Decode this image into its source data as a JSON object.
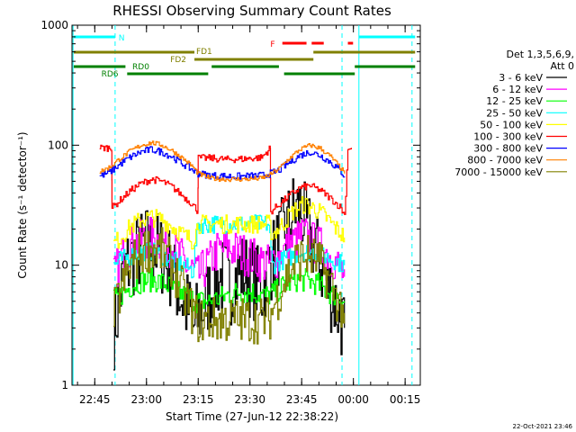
{
  "chart_data": {
    "type": "line",
    "title": "RHESSI Observing Summary Count Rates",
    "ylabel": "Count Rate (s⁻¹ detector⁻¹)",
    "xlabel": "Start Time (27-Jun-12 22:38:22)",
    "yscale": "log",
    "ylim": [
      1,
      1000
    ],
    "xlim_minutes": [
      0,
      101
    ],
    "x_unit": "minutes after 27-Jun-12 22:38:22",
    "y_ticks": [
      "1",
      "10",
      "100",
      "1000"
    ],
    "x_ticks": [
      {
        "label": "22:45",
        "minute": 6.6
      },
      {
        "label": "23:00",
        "minute": 21.6
      },
      {
        "label": "23:15",
        "minute": 36.6
      },
      {
        "label": "23:30",
        "minute": 51.6
      },
      {
        "label": "23:45",
        "minute": 66.6
      },
      {
        "label": "00:00",
        "minute": 81.6
      },
      {
        "label": "00:15",
        "minute": 96.6
      }
    ],
    "legend_header": [
      "Det 1,3,5,6,9,",
      "Att 0"
    ],
    "legend_placement": "right",
    "series": [
      {
        "name": "3 - 6 keV",
        "color": "#000000",
        "x": [
          12,
          13,
          15,
          18,
          22,
          25,
          28,
          30,
          32,
          34,
          35,
          37,
          40,
          43,
          46,
          49,
          52,
          55,
          57,
          60,
          62,
          64,
          66,
          67,
          68,
          70,
          72,
          74,
          76,
          79
        ],
        "y": [
          3,
          4,
          9,
          12,
          15,
          13,
          10,
          7,
          5,
          4,
          3,
          4,
          6,
          8,
          7,
          9,
          8,
          6,
          10,
          15,
          20,
          28,
          30,
          24,
          20,
          15,
          10,
          7,
          5,
          3
        ]
      },
      {
        "name": "6 - 12 keV",
        "color": "#ff00ff",
        "x": [
          12,
          14,
          17,
          20,
          23,
          26,
          29,
          31,
          33,
          35,
          36.5,
          39,
          42,
          45,
          48,
          51,
          54,
          57,
          60,
          63,
          65,
          67,
          69,
          72,
          75,
          78,
          79
        ],
        "y": [
          8,
          11,
          15,
          16,
          17,
          16,
          14,
          12,
          10,
          9,
          8,
          10,
          13,
          14,
          13,
          12,
          11,
          10,
          12,
          15,
          16,
          18,
          16,
          14,
          12,
          9,
          8
        ]
      },
      {
        "name": "12 - 25 keV",
        "color": "#00ff00",
        "x": [
          12,
          15,
          18,
          21,
          24,
          27,
          30,
          33,
          36,
          36.5,
          40,
          44,
          48,
          52,
          56,
          59,
          62,
          65,
          68,
          71,
          74,
          77,
          79
        ],
        "y": [
          5,
          6,
          7,
          7.5,
          7.5,
          7,
          6,
          5.5,
          5,
          5,
          5,
          5.5,
          6,
          6,
          5.5,
          6,
          7,
          7.5,
          7.5,
          7,
          6,
          5.5,
          5
        ]
      },
      {
        "name": "25 - 50 keV",
        "color": "#00ffff",
        "x": [
          12,
          14,
          17,
          20,
          23,
          26,
          29,
          32,
          35,
          36.5,
          40,
          45,
          50,
          55,
          57,
          58,
          61,
          64,
          67,
          70,
          73,
          76,
          79
        ],
        "y": [
          10,
          11,
          12,
          13,
          13,
          12,
          11,
          10,
          9,
          22,
          22,
          22,
          22,
          22,
          22,
          10,
          11,
          12,
          13,
          13,
          12,
          11,
          10
        ]
      },
      {
        "name": "50 - 100 keV",
        "color": "#ffff00",
        "x": [
          12,
          14,
          17,
          20,
          23,
          26,
          29,
          32,
          35,
          36.5,
          40,
          45,
          50,
          55,
          57,
          58,
          61,
          64,
          67,
          70,
          73,
          76,
          79
        ],
        "y": [
          15,
          17,
          21,
          24,
          25,
          24,
          21,
          18,
          16,
          22,
          22,
          22,
          22,
          22,
          22,
          18,
          22,
          28,
          32,
          30,
          26,
          21,
          17
        ]
      },
      {
        "name": "100 - 300 keV",
        "color": "#ff0000",
        "x": [
          8,
          11.5,
          11.6,
          14,
          17,
          20,
          23,
          26,
          29,
          32,
          35,
          36.5,
          36.6,
          40,
          45,
          50,
          55,
          57.5,
          57.6,
          60,
          63,
          66,
          69,
          72,
          75,
          78,
          79,
          80,
          81
        ],
        "y": [
          95,
          95,
          30,
          35,
          42,
          48,
          52,
          50,
          45,
          38,
          32,
          28,
          78,
          78,
          76,
          77,
          79,
          95,
          28,
          32,
          38,
          44,
          46,
          42,
          36,
          30,
          26,
          95,
          95
        ]
      },
      {
        "name": "300 - 800 keV",
        "color": "#0000ff",
        "x": [
          8,
          11,
          14,
          17,
          20,
          23,
          26,
          29,
          32,
          35,
          36.5,
          40,
          45,
          50,
          55,
          57.5,
          60,
          63,
          66,
          69,
          72,
          75,
          78,
          79
        ],
        "y": [
          55,
          60,
          70,
          80,
          88,
          92,
          88,
          80,
          70,
          62,
          58,
          56,
          55,
          55,
          56,
          58,
          62,
          72,
          82,
          88,
          82,
          72,
          60,
          55
        ]
      },
      {
        "name": "800 - 7000 keV",
        "color": "#ff8000",
        "x": [
          8,
          11,
          14,
          17,
          20,
          23,
          26,
          29,
          32,
          35,
          36.5,
          40,
          45,
          50,
          55,
          57.5,
          60,
          63,
          66,
          69,
          72,
          75,
          78,
          79
        ],
        "y": [
          60,
          66,
          78,
          90,
          100,
          105,
          100,
          90,
          78,
          66,
          58,
          53,
          52,
          52,
          53,
          57,
          64,
          78,
          92,
          100,
          94,
          80,
          64,
          58
        ]
      },
      {
        "name": "7000 - 15000 keV",
        "color": "#808000",
        "x": [
          12,
          14,
          17,
          20,
          23,
          26,
          29,
          32,
          35,
          36.5,
          40,
          45,
          50,
          55,
          57,
          59,
          62,
          65,
          68,
          71,
          74,
          77,
          79
        ],
        "y": [
          4,
          6,
          10,
          13,
          14,
          13,
          10,
          6,
          4,
          3.5,
          3.5,
          3.5,
          3.5,
          3.5,
          3.5,
          5,
          8,
          11,
          12,
          11,
          8,
          5,
          4
        ]
      }
    ],
    "status_bars": {
      "N": {
        "color": "#00ffff",
        "label": "N"
      },
      "F": {
        "color": "#ff0000",
        "label": "F"
      },
      "FD1": {
        "color": "#808000",
        "label": "FD1"
      },
      "FD2": {
        "color": "#808000",
        "label": "FD2"
      },
      "RD0": {
        "color": "#008000",
        "label": "RD0"
      },
      "RD6": {
        "color": "#008000",
        "label": "RD6"
      }
    },
    "footer_timestamp": "22-Oct-2021 23:46"
  }
}
